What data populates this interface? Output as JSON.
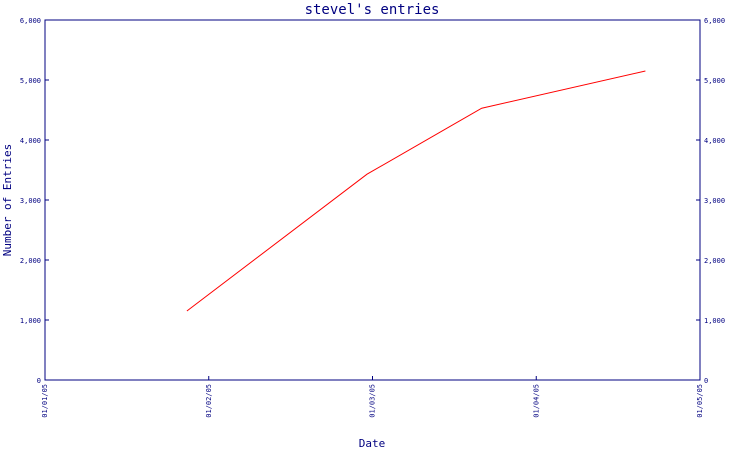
{
  "chart_data": {
    "type": "line",
    "title": "stevel's entries",
    "xlabel": "Date",
    "ylabel": "Number of Entries",
    "x_ticks": [
      "01/01/05",
      "01/02/05",
      "01/03/05",
      "01/04/05",
      "01/05/05"
    ],
    "y_ticks": [
      "0",
      "1,000",
      "2,000",
      "3,000",
      "4,000",
      "5,000",
      "6,000"
    ],
    "xlim": [
      "2005-01-01",
      "2005-05-01"
    ],
    "ylim": [
      0,
      6000
    ],
    "grid": false,
    "series": [
      {
        "color": "#ff0000",
        "points": [
          {
            "x": "2005-01-27",
            "y": 1150
          },
          {
            "x": "2005-03-01",
            "y": 3430
          },
          {
            "x": "2005-03-22",
            "y": 4530
          },
          {
            "x": "2005-04-21",
            "y": 5150
          }
        ]
      }
    ]
  }
}
